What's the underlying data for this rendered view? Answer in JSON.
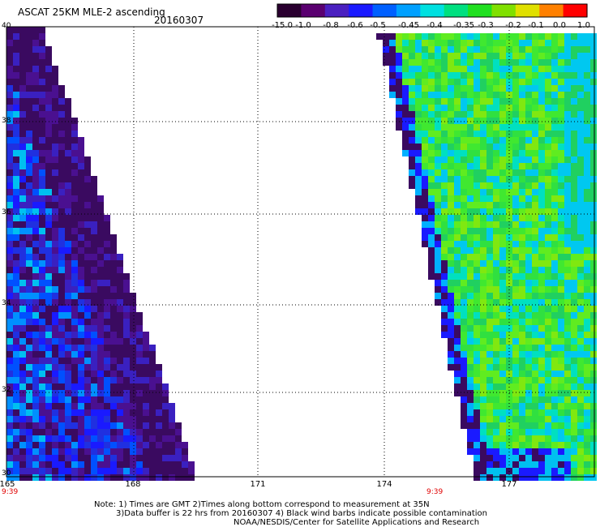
{
  "header": {
    "title": "ASCAT 25KM MLE-2 ascending",
    "date": "20160307"
  },
  "colorbar": {
    "labels": [
      "-15.0",
      "-1.0",
      "-0.8",
      "-0.6",
      "-0.5",
      "-0.45",
      "-0.4",
      "-0.35",
      "-0.3",
      "-0.2",
      "-0.1",
      "0.0",
      "1.0"
    ],
    "colors": [
      "#2a0030",
      "#5a0070",
      "#4a20c0",
      "#1a1aff",
      "#0060ff",
      "#00a0ff",
      "#00e0e0",
      "#00e080",
      "#20e020",
      "#80e000",
      "#e0e000",
      "#ff8000",
      "#ff0000"
    ]
  },
  "map": {
    "y_ticks": [
      "40",
      "38",
      "36",
      "34",
      "32",
      "30"
    ],
    "x_ticks": [
      "165",
      "168",
      "171",
      "174",
      "177"
    ],
    "pass_times": [
      "9:39",
      "9:39"
    ]
  },
  "notes": {
    "line1": "Note: 1) Times are GMT 2)Times along bottom correspond to measurement at 35N",
    "line2": "3)Data buffer is 22 hrs from 20160307 4) Black wind barbs indicate possible contamination",
    "line3": "NOAA/NESDIS/Center for Satellite Applications and Research"
  }
}
